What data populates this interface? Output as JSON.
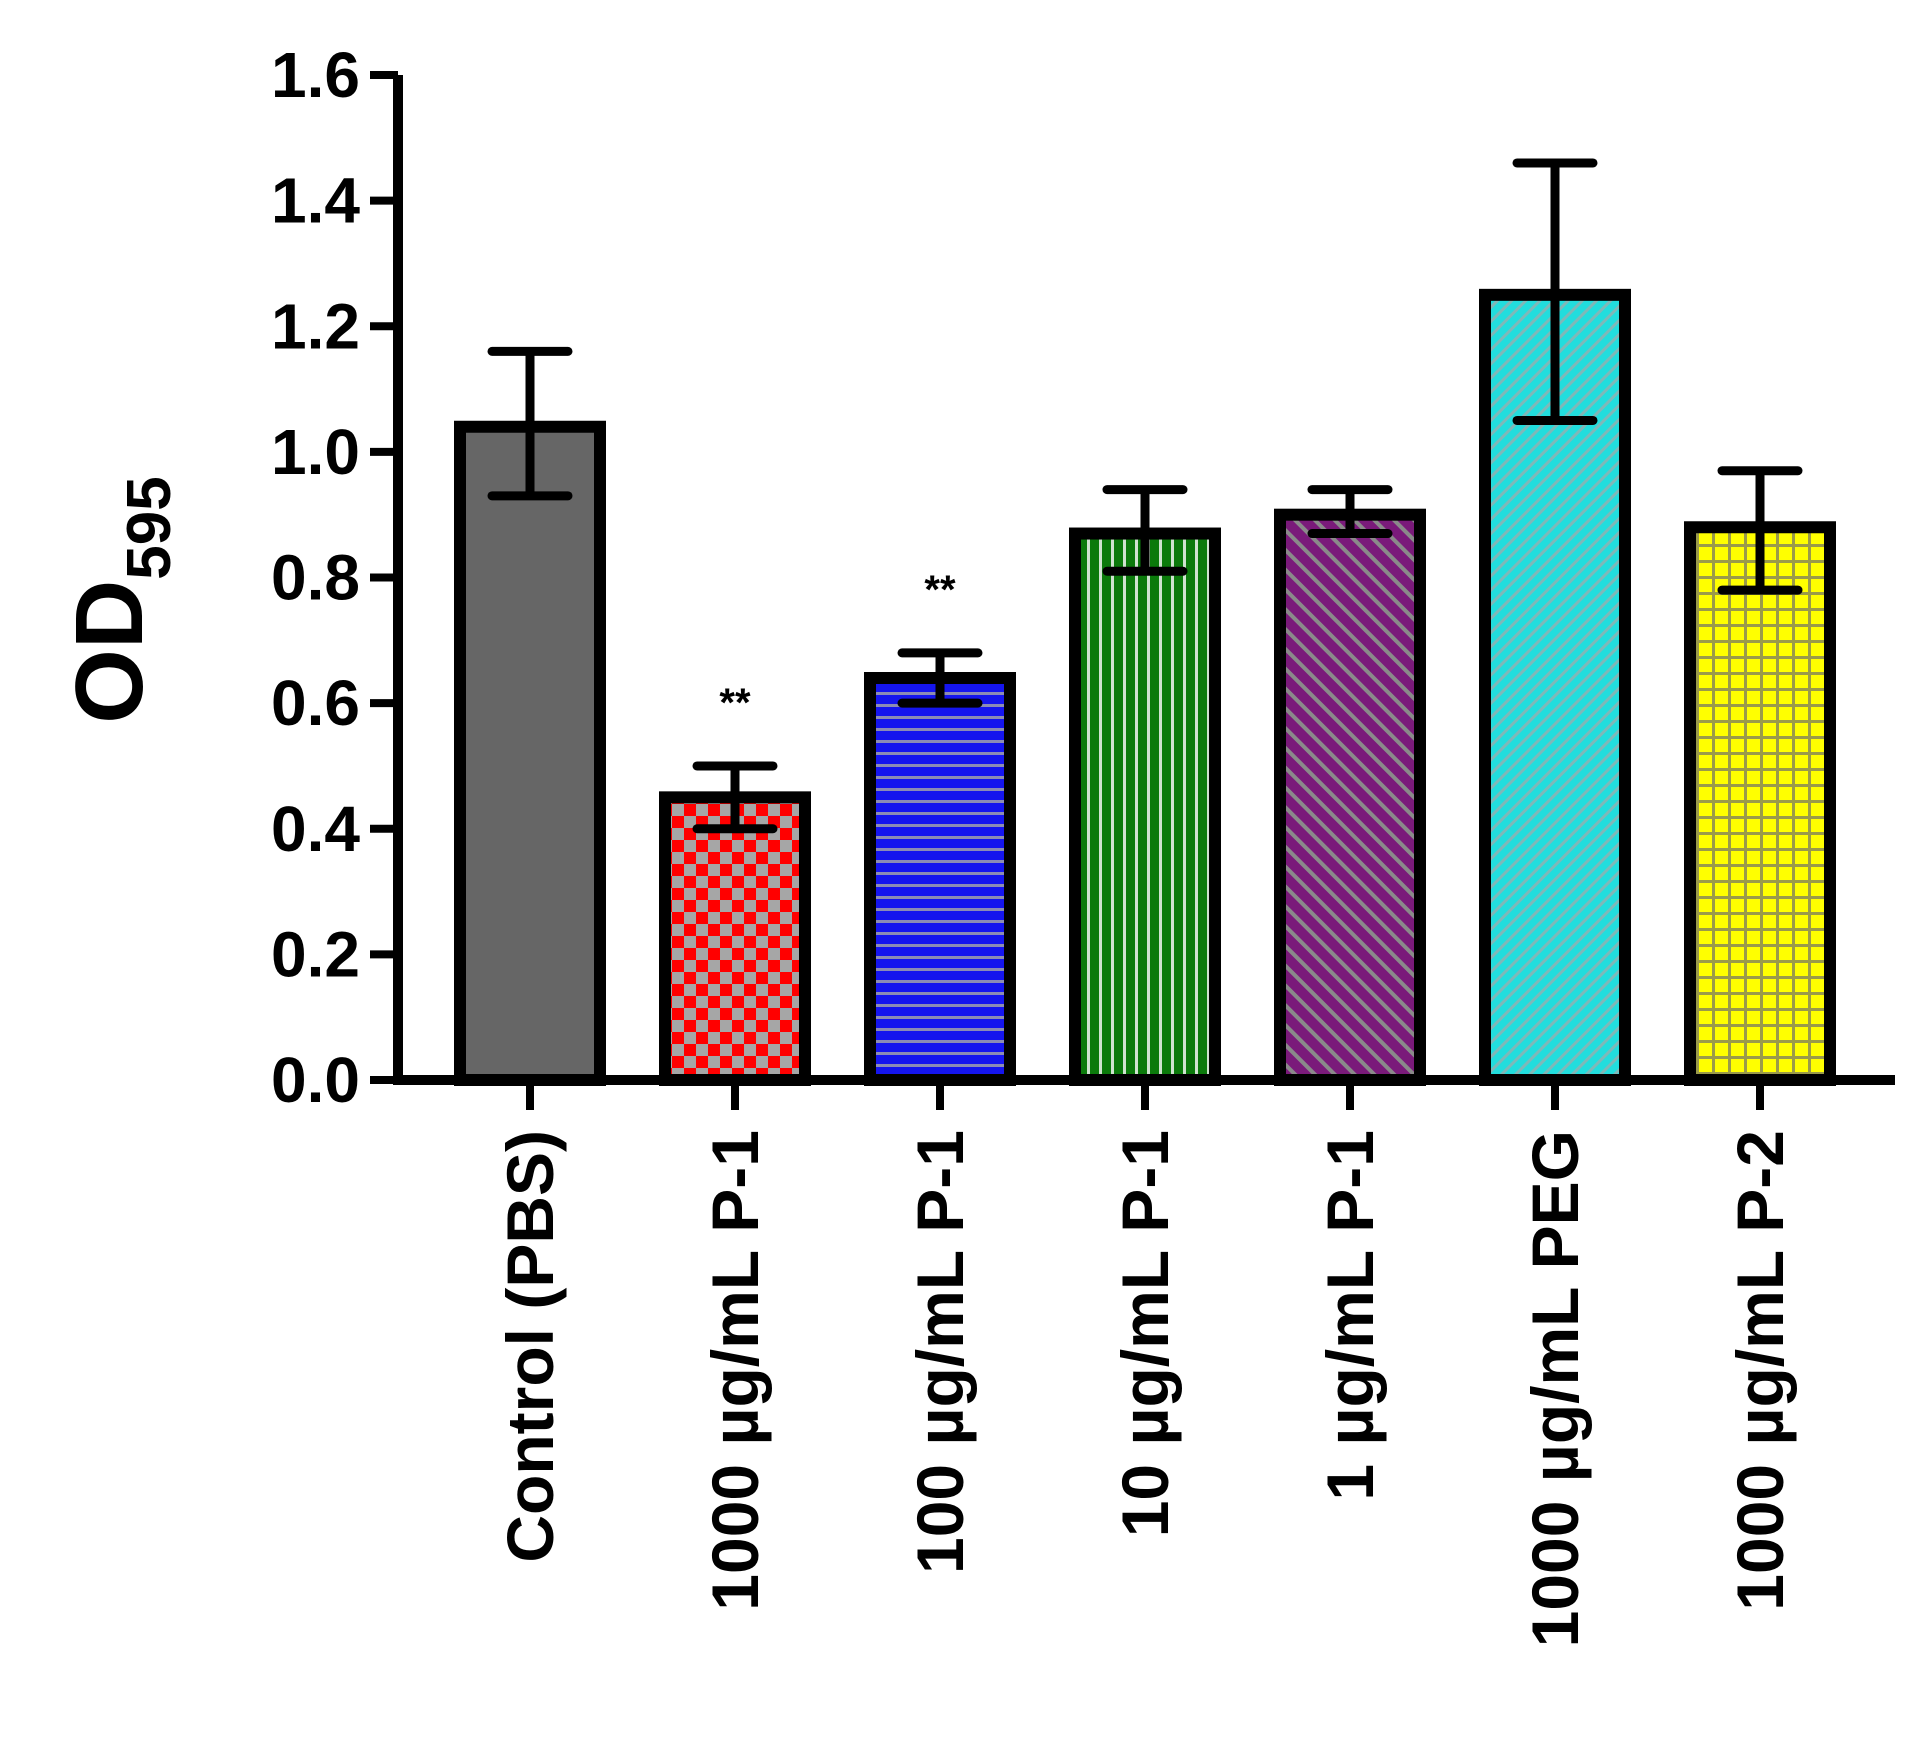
{
  "chart_data": {
    "type": "bar",
    "ylabel": "OD",
    "ylabel_subscript": "595",
    "xlabel": "",
    "ylim": [
      0,
      1.6
    ],
    "yticks": [
      "0.0",
      "0.2",
      "0.4",
      "0.6",
      "0.8",
      "1.0",
      "1.2",
      "1.4",
      "1.6"
    ],
    "categories": [
      "Control (PBS)",
      "1000 µg/mL P-1",
      "100 µg/mL P-1",
      "10 µg/mL P-1",
      "1 µg/mL P-1",
      "1000 µg/mL PEG",
      "1000 µg/mL P-2"
    ],
    "values": [
      1.04,
      0.45,
      0.64,
      0.87,
      0.9,
      1.25,
      0.88
    ],
    "error_low": [
      0.93,
      0.4,
      0.6,
      0.81,
      0.87,
      1.05,
      0.78
    ],
    "error_high": [
      1.16,
      0.5,
      0.68,
      0.94,
      0.94,
      1.46,
      0.97
    ],
    "annotations": [
      "",
      "**",
      "**",
      "",
      "",
      "",
      ""
    ],
    "bar_colors": [
      "#666666",
      "#ff0000",
      "#1515ee",
      "#0b7a0b",
      "#7a1a7a",
      "#22dddd",
      "#ffff00"
    ],
    "patterns": [
      "solid",
      "checker",
      "horizontal",
      "vertical",
      "diagonal",
      "diagonal-fine",
      "grid"
    ],
    "grid": false,
    "legend": "none"
  }
}
